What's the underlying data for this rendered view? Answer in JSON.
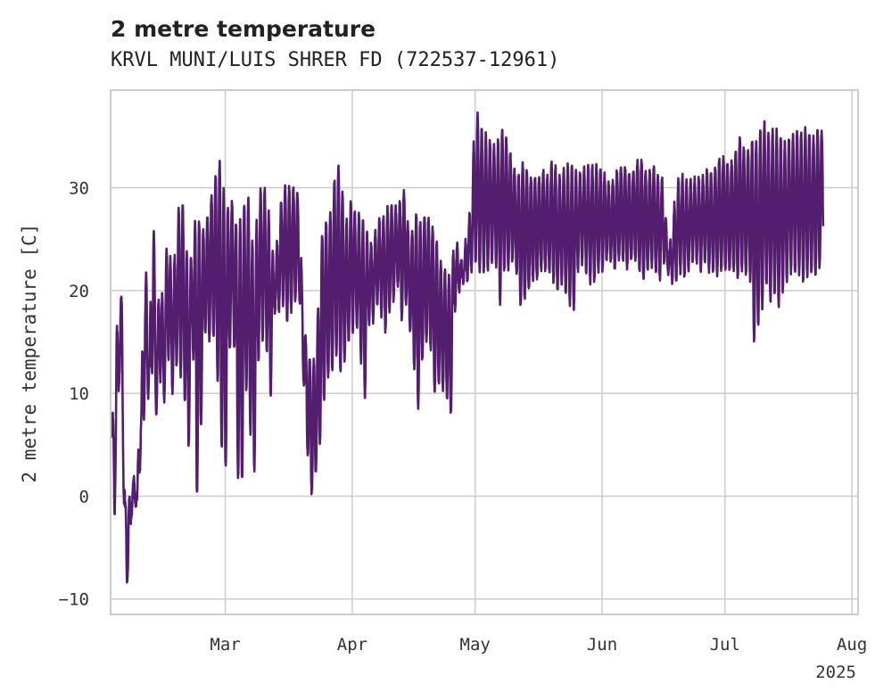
{
  "chart_data": {
    "type": "line",
    "title": "2 metre temperature",
    "subtitle": "KRVL MUNI/LUIS SHRER FD (722537-12961)",
    "ylabel": "2 metre temperature [C]",
    "xlabel": "",
    "year_label": "2025",
    "x_ticks": [
      "Mar",
      "Apr",
      "May",
      "Jun",
      "Jul",
      "Aug"
    ],
    "x_tick_days": [
      28,
      59,
      89,
      120,
      150,
      181
    ],
    "xlim_days": [
      0,
      182.5
    ],
    "y_ticks": [
      -10,
      0,
      10,
      20,
      30
    ],
    "ylim": [
      -11.5,
      39.5
    ],
    "grid": true,
    "line_color": "#541e6e",
    "series": [
      {
        "name": "2 metre temperature",
        "unit": "C",
        "frequency": "hourly",
        "start_day": 0.4,
        "end_day": 181.9,
        "envelope_days": [
          0.5,
          1,
          1.5,
          2,
          2.5,
          3,
          3.5,
          4,
          4.5,
          5,
          5.5,
          6,
          6.5,
          7,
          7.5,
          8,
          8.5,
          9,
          9.5,
          10,
          10.5,
          11,
          11.5,
          12,
          12.5,
          13,
          14,
          15,
          16,
          17,
          18,
          19,
          20,
          21,
          22,
          23,
          24,
          25,
          26,
          27,
          28,
          29,
          30,
          31,
          32,
          33,
          34,
          35,
          36,
          37,
          38,
          39,
          40,
          41,
          42,
          43,
          44,
          45,
          46,
          47,
          48,
          49,
          50,
          51,
          52,
          53,
          54,
          55,
          56,
          57,
          58,
          59,
          60,
          61,
          62,
          63,
          64,
          65,
          66,
          67,
          68,
          69,
          70,
          71,
          72,
          73,
          74,
          75,
          76,
          77,
          78,
          79,
          80,
          81,
          82,
          83,
          84,
          85,
          86,
          87,
          88,
          89,
          90,
          91,
          92,
          93,
          94,
          95,
          96,
          97,
          98,
          99,
          100,
          101,
          102,
          103,
          104,
          105,
          106,
          107,
          108,
          109,
          110,
          111,
          112,
          113,
          114,
          115,
          116,
          117,
          118,
          119,
          120,
          121,
          122,
          123,
          124,
          125,
          126,
          127,
          128,
          129,
          130,
          131,
          132,
          133,
          134,
          135,
          136,
          137,
          138,
          139,
          140,
          141,
          142,
          143,
          144,
          145,
          146,
          147,
          148,
          149,
          150,
          151,
          152,
          153,
          154,
          155,
          156,
          157,
          158,
          159,
          160,
          161,
          162,
          163,
          164,
          165,
          166,
          167,
          168,
          169,
          170,
          171,
          172,
          173,
          174,
          175,
          176,
          177,
          178,
          179,
          180,
          181,
          181.9
        ],
        "daily_max": [
          9,
          2,
          17,
          14,
          19.5,
          19,
          0,
          -3,
          0,
          -1,
          1.5,
          2,
          0,
          9,
          8,
          22,
          20,
          25,
          13,
          27,
          27,
          18,
          16,
          24.5,
          20,
          17,
          27.5,
          20,
          25,
          29.5,
          27.5,
          21,
          24.5,
          28,
          26,
          26,
          28,
          30,
          32,
          33,
          28,
          28,
          29,
          25,
          28,
          28.5,
          29,
          22,
          29,
          30,
          29.5,
          26,
          22,
          26,
          30,
          30,
          30,
          30,
          29,
          18,
          14,
          13,
          13.5,
          21,
          28,
          26,
          28.5,
          32,
          32,
          28,
          26,
          30,
          26,
          28,
          26,
          25,
          24,
          26.5,
          27,
          27,
          28.5,
          28,
          28,
          29,
          30,
          24,
          27,
          28,
          26,
          28,
          26.5,
          26,
          24,
          22,
          22,
          21,
          25,
          24,
          22,
          26,
          28,
          37.5,
          36.5,
          35,
          35,
          34,
          34,
          35,
          36,
          34,
          33,
          31,
          31.5,
          33,
          31,
          31,
          31,
          31,
          32,
          30.5,
          33.5,
          31,
          31,
          32,
          32,
          32,
          31,
          31.5,
          32,
          32,
          32,
          32,
          31.5,
          31,
          30,
          31,
          32,
          32,
          32,
          31,
          32,
          33,
          32.5,
          31,
          32,
          32,
          30.5,
          31,
          24,
          25,
          30,
          31,
          31,
          30,
          31,
          30.5,
          31,
          31,
          32,
          31,
          32.5,
          33,
          33,
          32,
          33,
          34,
          35.5,
          33,
          34,
          35,
          34,
          36.5,
          36,
          34.5,
          36,
          35,
          34.5,
          34,
          35,
          35,
          35.5,
          35,
          36,
          34.5,
          35,
          36,
          35
        ],
        "daily_min": [
          -1.5,
          -2.5,
          11,
          10,
          15,
          5,
          -8,
          -9,
          -5,
          -2.5,
          0,
          -1,
          -0.5,
          2,
          4,
          8,
          7,
          11,
          7,
          12,
          13,
          9,
          6,
          12,
          10,
          9,
          14,
          10,
          13,
          12,
          10,
          4,
          16,
          -0.5,
          6,
          16,
          15,
          16,
          12,
          5,
          1.5,
          14,
          17,
          2,
          0.5,
          11,
          7,
          1.5,
          13,
          15.5,
          15,
          9,
          18,
          18,
          19,
          17,
          18,
          19,
          20,
          12,
          4.5,
          0,
          2,
          4.5,
          9,
          11.5,
          12,
          14,
          12,
          13,
          15,
          16,
          17,
          14,
          9,
          17,
          17,
          19,
          18,
          16,
          18,
          19,
          21,
          17,
          19,
          16.5,
          13,
          8,
          13,
          15,
          15,
          10,
          11,
          10.5,
          10,
          7,
          18,
          20,
          21,
          21,
          22,
          23,
          22,
          22,
          22,
          23,
          23,
          18.5,
          22,
          22,
          23,
          22,
          18.5,
          19,
          20,
          21,
          21,
          22,
          22,
          22,
          21,
          20,
          21,
          20,
          19,
          18,
          22,
          23,
          22,
          21,
          21,
          22,
          22,
          23,
          23,
          22,
          23,
          23,
          22,
          23,
          23,
          22,
          21,
          22,
          22.5,
          22,
          21,
          23,
          22,
          21,
          21,
          22,
          21.5,
          22,
          23,
          23,
          22,
          23,
          22,
          22,
          21.5,
          22,
          22,
          22,
          22,
          21,
          22,
          21.5,
          22,
          15,
          16.5,
          18,
          21,
          19,
          20,
          18.5,
          20,
          21,
          22,
          22,
          22,
          21,
          21.5,
          22,
          21.5,
          22,
          25
        ]
      }
    ]
  }
}
